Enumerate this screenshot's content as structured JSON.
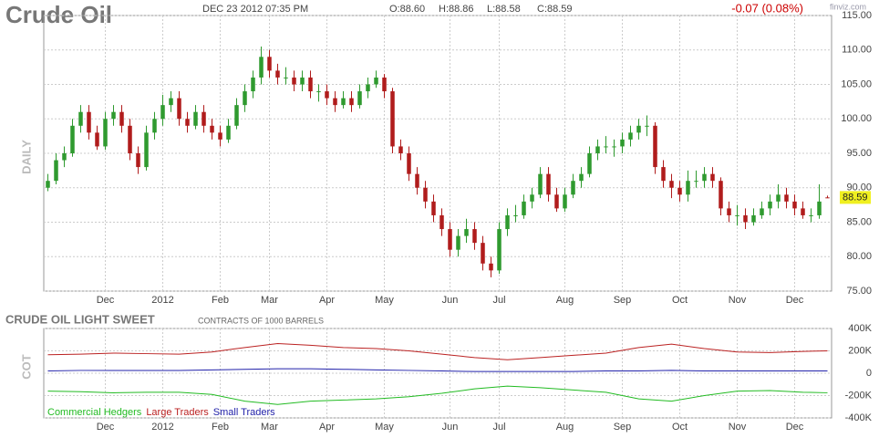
{
  "header": {
    "title": "Crude Oil",
    "datetime": "DEC 23 2012 07:35 PM",
    "open": "O:88.60",
    "high": "H:88.86",
    "low": "L:88.58",
    "close": "C:88.59",
    "change": "-0.07 (0.08%)",
    "brand": "finviz.com"
  },
  "chart_data": [
    {
      "type": "candlestick",
      "axis_label": "DAILY",
      "up_color": "#2f9a2f",
      "down_color": "#b01c1c",
      "grid": true,
      "last_price": 88.59,
      "xlim": [
        -0.5,
        95.5
      ],
      "xticks": [
        {
          "value": 7,
          "label": "Dec"
        },
        {
          "value": 14,
          "label": "2012"
        },
        {
          "value": 21,
          "label": "Feb"
        },
        {
          "value": 27,
          "label": "Mar"
        },
        {
          "value": 34,
          "label": "Apr"
        },
        {
          "value": 41,
          "label": "May"
        },
        {
          "value": 49,
          "label": "Jun"
        },
        {
          "value": 55,
          "label": "Jul"
        },
        {
          "value": 63,
          "label": "Aug"
        },
        {
          "value": 70,
          "label": "Sep"
        },
        {
          "value": 77,
          "label": "Oct"
        },
        {
          "value": 84,
          "label": "Nov"
        },
        {
          "value": 91,
          "label": "Dec"
        }
      ],
      "ylim": [
        75,
        115
      ],
      "yticks": [
        {
          "value": 75,
          "label": "75.00"
        },
        {
          "value": 80,
          "label": "80.00"
        },
        {
          "value": 85,
          "label": "85.00"
        },
        {
          "value": 90,
          "label": "90.00"
        },
        {
          "value": 95,
          "label": "95.00"
        },
        {
          "value": 100,
          "label": "100.00"
        },
        {
          "value": 105,
          "label": "105.00"
        },
        {
          "value": 110,
          "label": "110.00"
        },
        {
          "value": 115,
          "label": "115.00"
        }
      ],
      "ohlc": [
        [
          90,
          92,
          89.5,
          91
        ],
        [
          91,
          95,
          90.5,
          94
        ],
        [
          94,
          96,
          93,
          95
        ],
        [
          95,
          100,
          94.5,
          99
        ],
        [
          99,
          102,
          98,
          101
        ],
        [
          101,
          102,
          97,
          98
        ],
        [
          98,
          99,
          95.5,
          96
        ],
        [
          96,
          101,
          95.5,
          100
        ],
        [
          100,
          102,
          99,
          101
        ],
        [
          101,
          102,
          98,
          99
        ],
        [
          99,
          100,
          94,
          95
        ],
        [
          95,
          96,
          92,
          93
        ],
        [
          93,
          99,
          92.5,
          98
        ],
        [
          98,
          101,
          97,
          100
        ],
        [
          100,
          103.5,
          99,
          102
        ],
        [
          102,
          104,
          101,
          103
        ],
        [
          103,
          104,
          99,
          100
        ],
        [
          100,
          101,
          98,
          99
        ],
        [
          99,
          102,
          98.5,
          101
        ],
        [
          101,
          102,
          98,
          99
        ],
        [
          99,
          100,
          97,
          98
        ],
        [
          98,
          99,
          96,
          97
        ],
        [
          97,
          100,
          96.5,
          99
        ],
        [
          99,
          103,
          98.5,
          102
        ],
        [
          102,
          105,
          101,
          104
        ],
        [
          104,
          107,
          103,
          106
        ],
        [
          106,
          110.5,
          105,
          109
        ],
        [
          109,
          110,
          106,
          107
        ],
        [
          107,
          108,
          105,
          106
        ],
        [
          106,
          107.5,
          105,
          106
        ],
        [
          106,
          107,
          104,
          105
        ],
        [
          105,
          107,
          104,
          106
        ],
        [
          106,
          107,
          103,
          104
        ],
        [
          104,
          105,
          102.5,
          104
        ],
        [
          104,
          105,
          102,
          103
        ],
        [
          103,
          104,
          101,
          102
        ],
        [
          102,
          104,
          101.5,
          103
        ],
        [
          103,
          104,
          101,
          102
        ],
        [
          102,
          105,
          101.5,
          104
        ],
        [
          104,
          106,
          103,
          105
        ],
        [
          105,
          107,
          104.5,
          106
        ],
        [
          106,
          106.5,
          103,
          104
        ],
        [
          104,
          104.5,
          95,
          96
        ],
        [
          96,
          97,
          94,
          95
        ],
        [
          95,
          96,
          91,
          92
        ],
        [
          92,
          93,
          89,
          90
        ],
        [
          90,
          91,
          87,
          88
        ],
        [
          88,
          89,
          85,
          86
        ],
        [
          86,
          87,
          83,
          84
        ],
        [
          84,
          85,
          80,
          81
        ],
        [
          81,
          84,
          80,
          83
        ],
        [
          83,
          85.5,
          82,
          84
        ],
        [
          84,
          85,
          81,
          82
        ],
        [
          82,
          83,
          78,
          79
        ],
        [
          79,
          80,
          77,
          78
        ],
        [
          78,
          85,
          77.5,
          84
        ],
        [
          84,
          87,
          83,
          86
        ],
        [
          86,
          87.5,
          85,
          86
        ],
        [
          86,
          89,
          85.5,
          88
        ],
        [
          88,
          90,
          87,
          89
        ],
        [
          89,
          93,
          88.5,
          92
        ],
        [
          92,
          93,
          88,
          89
        ],
        [
          89,
          90,
          86.5,
          87
        ],
        [
          87,
          90,
          86.5,
          89
        ],
        [
          89,
          92,
          88.5,
          91
        ],
        [
          91,
          93,
          90,
          92
        ],
        [
          92,
          96,
          91.5,
          95
        ],
        [
          95,
          97,
          94,
          96
        ],
        [
          96,
          97.5,
          95,
          96
        ],
        [
          96,
          97,
          94.5,
          96
        ],
        [
          96,
          98,
          95,
          97
        ],
        [
          97,
          99,
          96,
          98
        ],
        [
          98,
          100,
          97,
          99
        ],
        [
          99,
          100.5,
          97.5,
          99
        ],
        [
          99,
          99.5,
          92,
          93
        ],
        [
          93,
          94,
          90,
          91
        ],
        [
          91,
          92,
          88.5,
          90
        ],
        [
          90,
          91,
          88,
          89
        ],
        [
          89,
          92.5,
          88,
          91
        ],
        [
          91,
          92.5,
          90,
          91
        ],
        [
          91,
          93,
          90,
          92
        ],
        [
          92,
          93,
          90,
          91
        ],
        [
          91,
          91.5,
          86,
          87
        ],
        [
          87,
          88,
          85,
          86
        ],
        [
          86,
          87.5,
          84.5,
          86
        ],
        [
          86,
          87,
          84,
          85
        ],
        [
          85,
          87,
          84.5,
          86
        ],
        [
          86,
          88,
          85.5,
          87
        ],
        [
          87,
          89,
          86,
          88
        ],
        [
          88,
          90.5,
          87,
          89
        ],
        [
          89,
          90,
          87,
          88
        ],
        [
          88,
          89,
          86,
          87
        ],
        [
          87,
          88,
          85.5,
          86
        ],
        [
          86,
          87,
          85,
          86
        ],
        [
          86,
          90.5,
          85.5,
          88
        ],
        [
          88.6,
          88.86,
          88.58,
          88.59
        ]
      ]
    },
    {
      "type": "line",
      "title": "CRUDE OIL LIGHT SWEET",
      "subtitle": "CONTRACTS OF 1000 BARRELS",
      "axis_label": "COT",
      "grid": true,
      "xlim": [
        -0.5,
        95.5
      ],
      "x": [
        0,
        4,
        8,
        12,
        16,
        20,
        24,
        28,
        32,
        36,
        40,
        44,
        48,
        52,
        56,
        60,
        64,
        68,
        72,
        76,
        80,
        84,
        88,
        92,
        95
      ],
      "ylim": [
        -400000,
        400000
      ],
      "yticks": [
        {
          "value": -400000,
          "label": "-400K"
        },
        {
          "value": -200000,
          "label": "-200K"
        },
        0,
        {
          "value": 200000,
          "label": "200K"
        },
        {
          "value": 400000,
          "label": "400K"
        }
      ],
      "series": [
        {
          "name": "Commercial Hedgers",
          "color": "#22bb22",
          "values": [
            -160000,
            -165000,
            -175000,
            -170000,
            -170000,
            -190000,
            -250000,
            -280000,
            -250000,
            -240000,
            -230000,
            -210000,
            -180000,
            -140000,
            -115000,
            -130000,
            -150000,
            -170000,
            -230000,
            -250000,
            -200000,
            -160000,
            -155000,
            -170000,
            -175000
          ]
        },
        {
          "name": "Large Traders",
          "color": "#bb2222",
          "values": [
            165000,
            170000,
            180000,
            175000,
            170000,
            190000,
            230000,
            265000,
            250000,
            230000,
            220000,
            200000,
            170000,
            140000,
            120000,
            140000,
            160000,
            180000,
            230000,
            260000,
            220000,
            190000,
            185000,
            195000,
            200000
          ]
        },
        {
          "name": "Small Traders",
          "color": "#2222aa",
          "values": [
            20000,
            25000,
            25000,
            25000,
            25000,
            30000,
            35000,
            40000,
            40000,
            35000,
            30000,
            25000,
            20000,
            15000,
            15000,
            15000,
            15000,
            20000,
            20000,
            25000,
            20000,
            20000,
            20000,
            20000,
            20000
          ]
        }
      ]
    }
  ]
}
